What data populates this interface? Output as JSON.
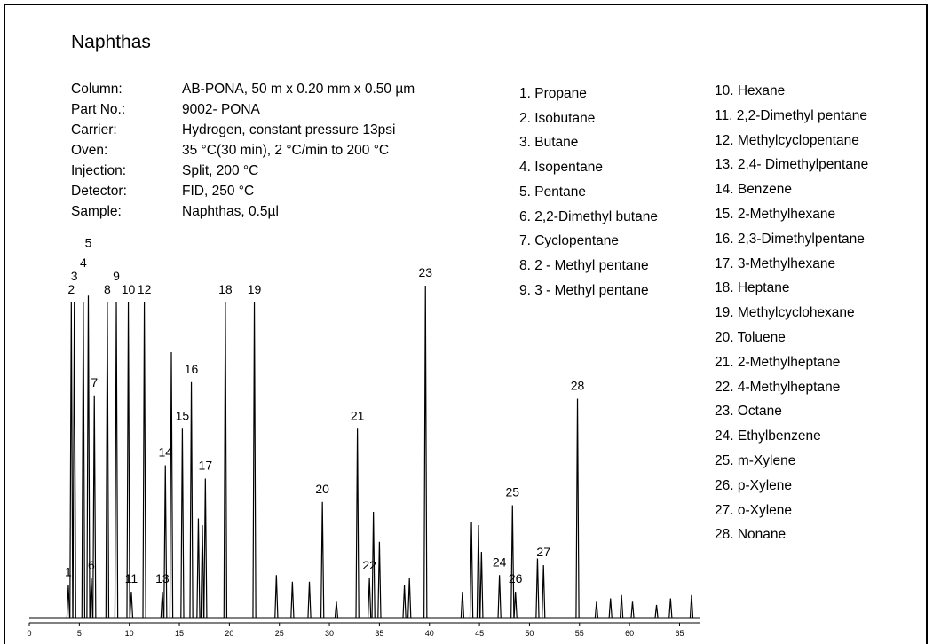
{
  "header": {
    "title": "Naphthas"
  },
  "info": [
    {
      "label": "Column:",
      "value": "AB-PONA, 50 m x 0.20 mm x 0.50 µm"
    },
    {
      "label": "Part No.:",
      "value": "9002- PONA"
    },
    {
      "label": "Carrier:",
      "value": "Hydrogen, constant pressure 13psi"
    },
    {
      "label": "Oven:",
      "value": "35 °C(30 min), 2 °C/min to 200 °C"
    },
    {
      "label": "Injection:",
      "value": "Split, 200 °C"
    },
    {
      "label": "Detector:",
      "value": "FID, 250 °C"
    },
    {
      "label": "Sample:",
      "value": "Naphthas, 0.5µl"
    }
  ],
  "compounds": [
    "1. Propane",
    "2. Isobutane",
    "3. Butane",
    "4. Isopentane",
    "5. Pentane",
    "6. 2,2-Dimethyl butane",
    "7. Cyclopentane",
    "8. 2 - Methyl pentane",
    "9. 3 - Methyl pentane",
    "10. Hexane",
    "11. 2,2-Dimethyl pentane",
    "12. Methylcyclopentane",
    "13. 2,4- Dimethylpentane",
    "14. Benzene",
    "15. 2-Methylhexane",
    "16. 2,3-Dimethylpentane",
    "17. 3-Methylhexane",
    "18. Heptane",
    "19. Methylcyclohexane",
    "20. Toluene",
    "21. 2-Methylheptane",
    "22. 4-Methylheptane",
    "23. Octane",
    "24. Ethylbenzene",
    "25. m-Xylene",
    "26. p-Xylene",
    "27. o-Xylene",
    "28. Nonane"
  ],
  "chart_data": {
    "type": "peaks",
    "color": "#000000",
    "xlim": [
      0,
      67
    ],
    "xticks": [
      0,
      5,
      10,
      15,
      20,
      25,
      30,
      35,
      40,
      45,
      50,
      55,
      60,
      65
    ],
    "ylim": [
      0,
      100
    ],
    "x": [
      3.9,
      4.2,
      4.5,
      5.4,
      5.9,
      6.2,
      6.5,
      7.8,
      8.7,
      9.9,
      10.2,
      11.5,
      13.3,
      13.6,
      14.2,
      15.3,
      16.2,
      16.9,
      17.3,
      17.6,
      19.6,
      22.5,
      24.7,
      26.3,
      28.0,
      29.3,
      30.7,
      32.8,
      34.0,
      34.4,
      35.0,
      37.5,
      38.0,
      39.6,
      43.3,
      44.2,
      44.9,
      45.2,
      47.0,
      48.3,
      48.6,
      50.8,
      51.4,
      54.8,
      56.7,
      58.1,
      59.2,
      60.3,
      62.7,
      64.1,
      66.2
    ],
    "values": [
      10,
      95,
      95,
      95,
      97,
      12,
      67,
      95,
      95,
      95,
      8,
      95,
      8,
      46,
      80,
      57,
      71,
      30,
      28,
      42,
      95,
      95,
      13,
      11,
      11,
      35,
      5,
      57,
      12,
      32,
      23,
      10,
      12,
      100,
      8,
      29,
      28,
      20,
      13,
      34,
      8,
      18,
      16,
      66,
      5,
      6,
      7,
      5,
      4,
      6,
      7
    ],
    "labels": [
      "1",
      "2",
      "3",
      "4",
      "5",
      "6",
      "7",
      "8",
      "9",
      "10",
      "11",
      "12",
      "13",
      "14",
      null,
      "15",
      "16",
      null,
      null,
      "17",
      "18",
      "19",
      null,
      null,
      null,
      "20",
      null,
      "21",
      "22",
      null,
      null,
      null,
      null,
      "23",
      null,
      null,
      null,
      null,
      "24",
      "25",
      "26",
      null,
      "27",
      "28",
      null,
      null,
      null,
      null,
      null,
      null,
      null
    ]
  }
}
